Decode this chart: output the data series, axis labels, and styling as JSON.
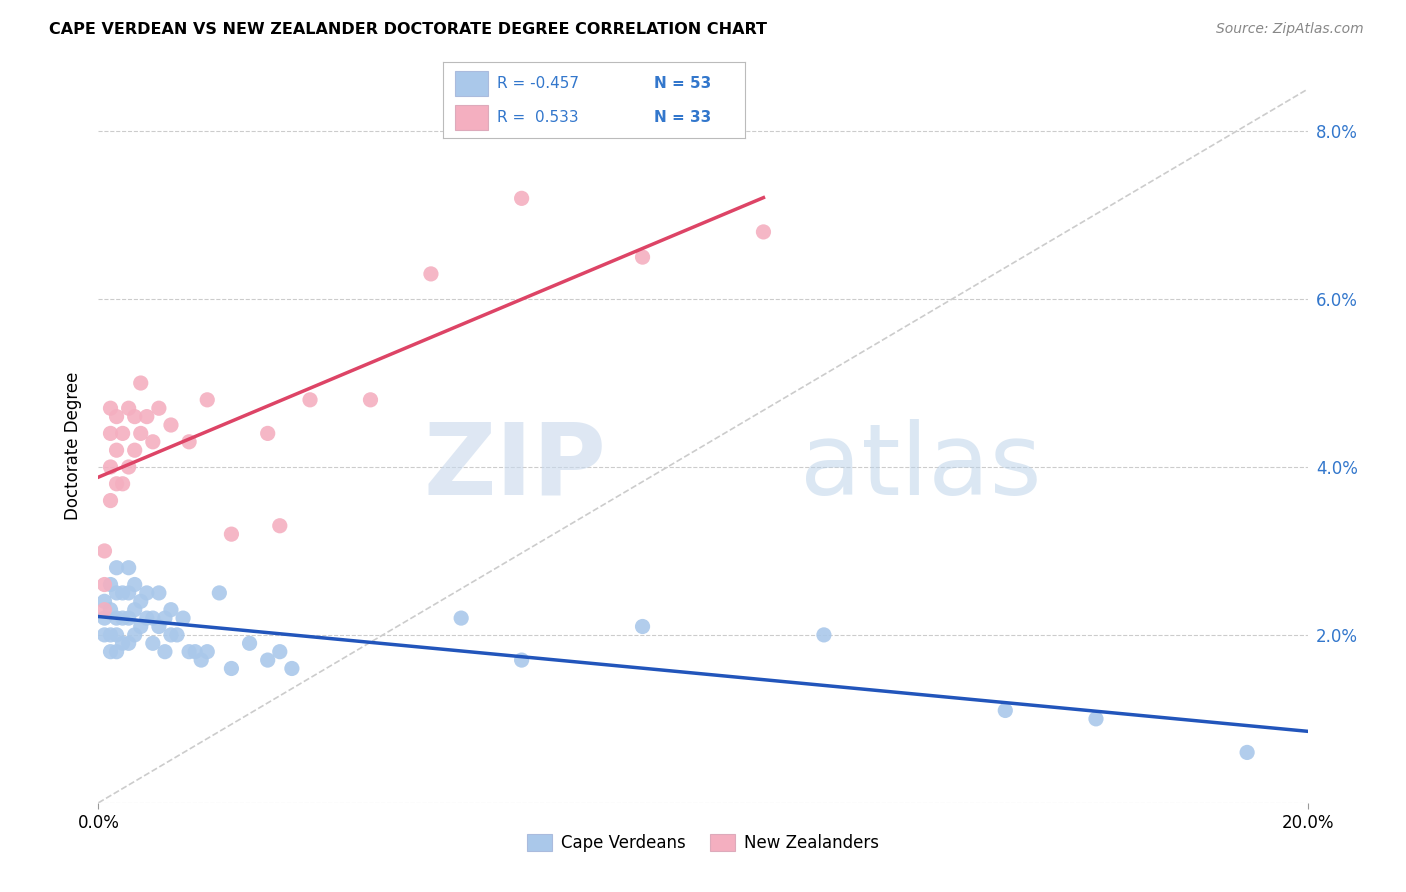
{
  "title": "CAPE VERDEAN VS NEW ZEALANDER DOCTORATE DEGREE CORRELATION CHART",
  "source": "Source: ZipAtlas.com",
  "ylabel": "Doctorate Degree",
  "watermark_zip": "ZIP",
  "watermark_atlas": "atlas",
  "legend_blue_label": "Cape Verdeans",
  "legend_pink_label": "New Zealanders",
  "blue_color": "#aac8ea",
  "pink_color": "#f4afc0",
  "blue_line_color": "#2255bb",
  "pink_line_color": "#dd4466",
  "blue_scatter_x": [
    0.001,
    0.001,
    0.001,
    0.002,
    0.002,
    0.002,
    0.002,
    0.003,
    0.003,
    0.003,
    0.003,
    0.003,
    0.004,
    0.004,
    0.004,
    0.005,
    0.005,
    0.005,
    0.005,
    0.006,
    0.006,
    0.006,
    0.007,
    0.007,
    0.008,
    0.008,
    0.009,
    0.009,
    0.01,
    0.01,
    0.011,
    0.011,
    0.012,
    0.012,
    0.013,
    0.014,
    0.015,
    0.016,
    0.017,
    0.018,
    0.02,
    0.022,
    0.025,
    0.028,
    0.03,
    0.032,
    0.06,
    0.07,
    0.09,
    0.12,
    0.15,
    0.165,
    0.19
  ],
  "blue_scatter_y": [
    0.024,
    0.022,
    0.02,
    0.026,
    0.023,
    0.02,
    0.018,
    0.028,
    0.025,
    0.022,
    0.02,
    0.018,
    0.025,
    0.022,
    0.019,
    0.028,
    0.025,
    0.022,
    0.019,
    0.026,
    0.023,
    0.02,
    0.024,
    0.021,
    0.025,
    0.022,
    0.022,
    0.019,
    0.025,
    0.021,
    0.022,
    0.018,
    0.023,
    0.02,
    0.02,
    0.022,
    0.018,
    0.018,
    0.017,
    0.018,
    0.025,
    0.016,
    0.019,
    0.017,
    0.018,
    0.016,
    0.022,
    0.017,
    0.021,
    0.02,
    0.011,
    0.01,
    0.006
  ],
  "pink_scatter_x": [
    0.001,
    0.001,
    0.001,
    0.002,
    0.002,
    0.002,
    0.002,
    0.003,
    0.003,
    0.003,
    0.004,
    0.004,
    0.005,
    0.005,
    0.006,
    0.006,
    0.007,
    0.007,
    0.008,
    0.009,
    0.01,
    0.012,
    0.015,
    0.018,
    0.022,
    0.028,
    0.03,
    0.035,
    0.045,
    0.055,
    0.07,
    0.09,
    0.11
  ],
  "pink_scatter_y": [
    0.03,
    0.026,
    0.023,
    0.047,
    0.044,
    0.04,
    0.036,
    0.046,
    0.042,
    0.038,
    0.044,
    0.038,
    0.047,
    0.04,
    0.046,
    0.042,
    0.05,
    0.044,
    0.046,
    0.043,
    0.047,
    0.045,
    0.043,
    0.048,
    0.032,
    0.044,
    0.033,
    0.048,
    0.048,
    0.063,
    0.072,
    0.065,
    0.068
  ],
  "xlim": [
    0.0,
    0.2
  ],
  "ylim": [
    0.0,
    0.085
  ],
  "yticks": [
    0.0,
    0.02,
    0.04,
    0.06,
    0.08
  ],
  "ytick_labels": [
    "",
    "2.0%",
    "4.0%",
    "6.0%",
    "8.0%"
  ],
  "background_color": "#ffffff",
  "grid_color": "#cccccc"
}
